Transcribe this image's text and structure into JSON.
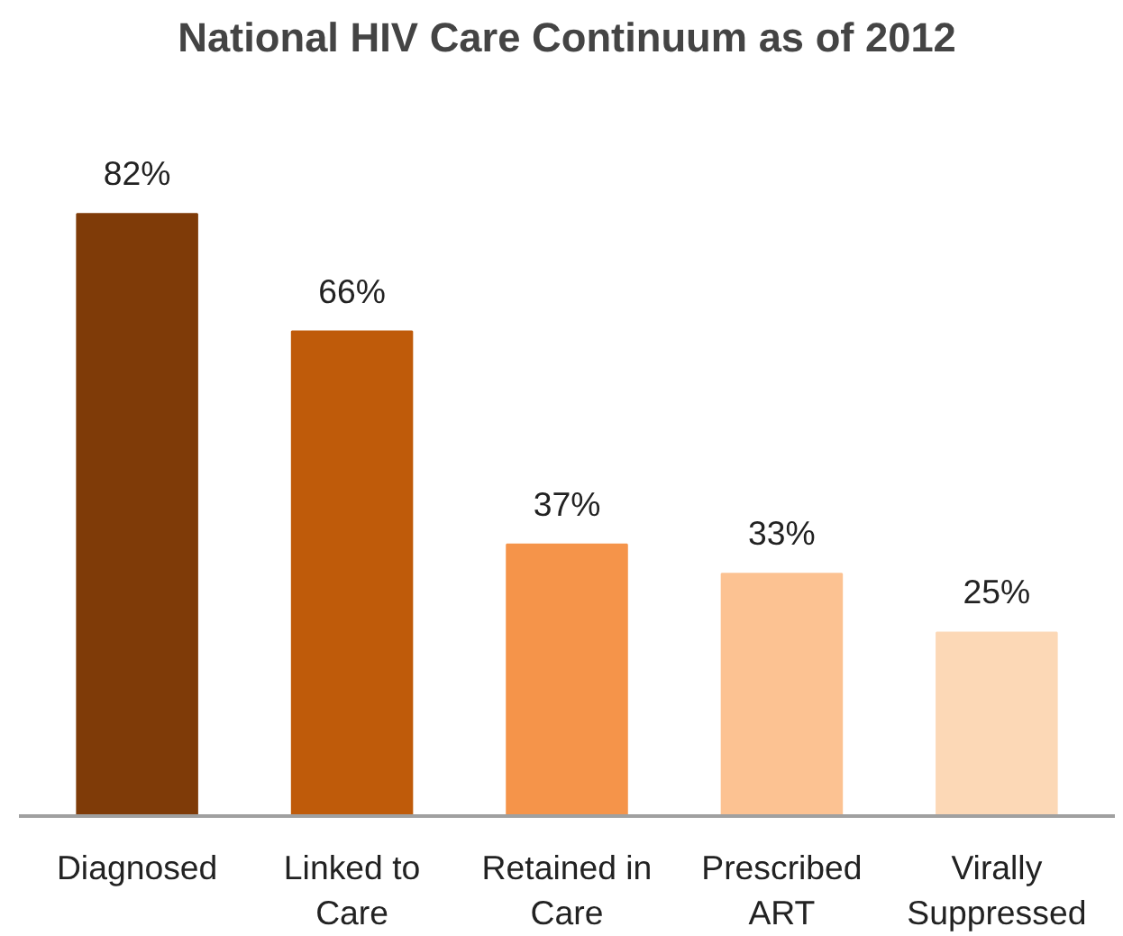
{
  "chart_data": {
    "type": "bar",
    "title": "National HIV Care Continuum as of 2012",
    "categories": [
      "Diagnosed",
      "Linked to Care",
      "Retained in Care",
      "Prescribed ART",
      "Virally Suppressed"
    ],
    "values": [
      82,
      66,
      37,
      33,
      25
    ],
    "value_labels": [
      "82%",
      "66%",
      "37%",
      "33%",
      "25%"
    ],
    "colors": [
      "#7f3b08",
      "#bf5b0a",
      "#f5944a",
      "#fcc292",
      "#fcd8b6"
    ],
    "grid": false
  }
}
